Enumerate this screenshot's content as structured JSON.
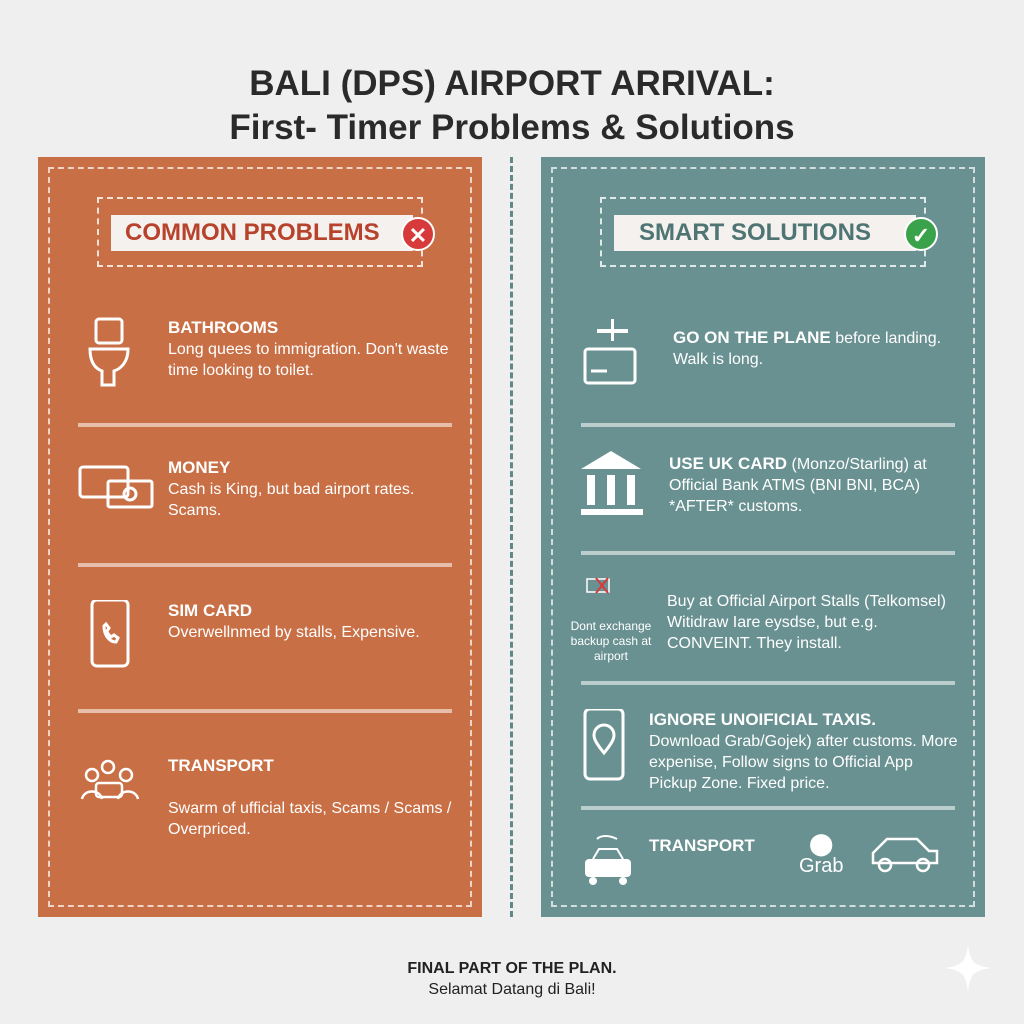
{
  "title": {
    "line1": "BALI (DPS) AIRPORT ARRIVAL:",
    "line2": "First- Timer Problems & Solutions"
  },
  "colors": {
    "problems": "#c96f45",
    "solutions": "#6a9191",
    "background": "#efefef"
  },
  "problems": {
    "header": "COMMON PROBLEMS",
    "badge_icon": "x-circle-icon",
    "items": [
      {
        "icon": "toilet-icon",
        "title": "BATHROOMS",
        "text": "Long quees to immigration. Don't waste time looking to toilet."
      },
      {
        "icon": "money-card-icon",
        "title": "MONEY",
        "text": "Cash is King, but bad airport rates. Scams."
      },
      {
        "icon": "phone-icon",
        "title": "SIM CARD",
        "text": "Overwellnmed by stalls, Expensive."
      },
      {
        "icon": "crowd-taxi-icon",
        "title": "TRANSPORT",
        "text": "Swarm of ufficial taxis, Scams / Scams / Overpriced."
      }
    ]
  },
  "solutions": {
    "header": "SMART SOLUTIONS",
    "badge_icon": "check-circle-icon",
    "items": [
      {
        "icon": "plane-card-icon",
        "title": "GO ON THE PLANE",
        "text": "before landing. Walk is long."
      },
      {
        "icon": "bank-icon",
        "title": "USE UK CARD",
        "text": "(Monzo/Starling) at Official Bank ATMS (BNI BNI, BCA) *AFTER* customs."
      },
      {
        "icon": "no-cash-icon",
        "caption": "Dont exchange backup cash at airport",
        "title": "",
        "text": "Buy at Official Airport Stalls (Telkomsel) Witidraw Iare eysdse, but e.g. CONVEINT. They install."
      },
      {
        "icon": "phone-location-icon",
        "title": "IGNORE UNOIFICIAL TAXIS.",
        "text": "Download Grab/Gojek) after customs. More expenise, Follow signs to Official App Pickup Zone. Fixed price."
      },
      {
        "icon": "taxi-crowd-icon",
        "title": "TRANSPORT",
        "text": "",
        "logo": "Grab"
      }
    ]
  },
  "footer": {
    "line1": "FINAL PART OF THE PLAN.",
    "line2": "Selamat Datang di Bali!"
  }
}
